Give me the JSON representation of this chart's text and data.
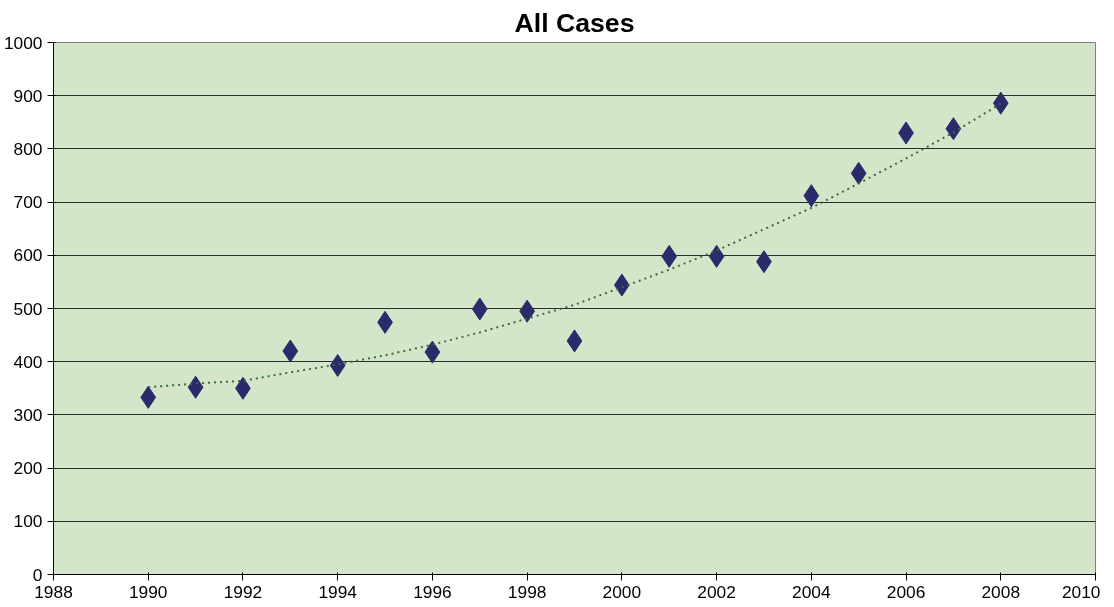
{
  "chart_data": {
    "type": "scatter",
    "title": "All Cases",
    "xlim": [
      1988,
      2010
    ],
    "xticks": [
      1988,
      1990,
      1992,
      1994,
      1996,
      1998,
      2000,
      2002,
      2004,
      2006,
      2008,
      2010
    ],
    "ylim": [
      0,
      1000
    ],
    "yticks": [
      0,
      100,
      200,
      300,
      400,
      500,
      600,
      700,
      800,
      900,
      1000
    ],
    "grid": "y",
    "series": [
      {
        "color": "#2b2a6b",
        "marker": "diamond",
        "x": [
          1990,
          1991,
          1992,
          1993,
          1994,
          1995,
          1996,
          1997,
          1998,
          1999,
          2000,
          2001,
          2002,
          2003,
          2004,
          2005,
          2006,
          2007,
          2008
        ],
        "values": [
          333,
          352,
          350,
          420,
          393,
          474,
          418,
          499,
          495,
          439,
          544,
          598,
          598,
          588,
          712,
          754,
          830,
          838,
          886
        ]
      },
      {
        "type": "line",
        "color": "#3a6b3a",
        "line_style": "dotted",
        "x": [
          1990,
          1991,
          1992,
          1993,
          1994,
          1995,
          1996,
          1997,
          1998,
          1999,
          2000,
          2001,
          2002,
          2003,
          2004,
          2005,
          2006,
          2007,
          2008
        ],
        "values": [
          352,
          359,
          364,
          380,
          395,
          412,
          432,
          455,
          481,
          507,
          540,
          573,
          609,
          649,
          689,
          735,
          782,
          831,
          885
        ]
      }
    ]
  }
}
